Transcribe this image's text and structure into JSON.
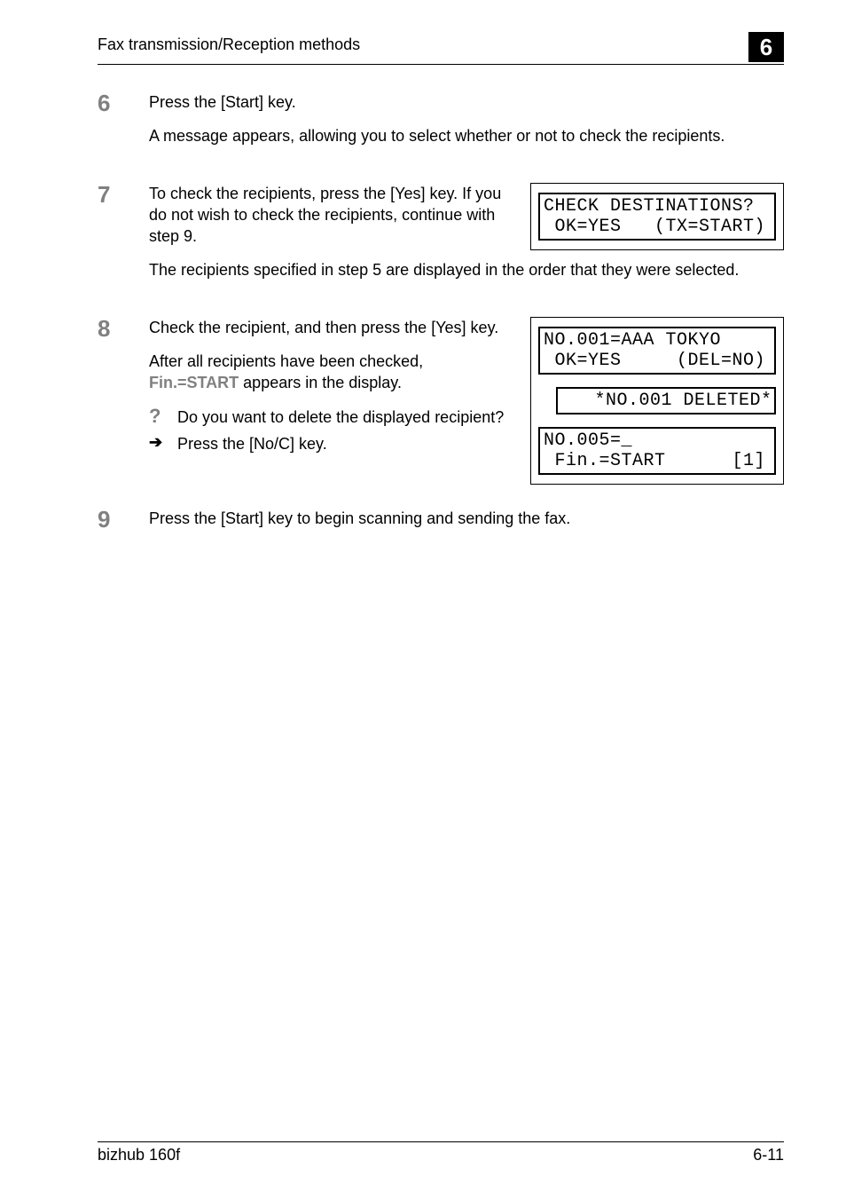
{
  "header": {
    "title": "Fax transmission/Reception methods",
    "chapter": "6"
  },
  "steps": {
    "s6": {
      "num": "6",
      "p1": "Press the [Start] key.",
      "p2": "A message appears, allowing you to select whether or not to check the recipients."
    },
    "s7": {
      "num": "7",
      "p1": "To check the recipients, press the [Yes] key. If you do not wish to check the recipients, continue with step 9.",
      "p2": "The recipients specified in step 5 are displayed in the order that they were selected.",
      "lcd": {
        "l1": "CHECK DESTINATIONS?",
        "l2": " OK=YES   (TX=START)"
      }
    },
    "s8": {
      "num": "8",
      "p1": "Check the recipient, and then press the [Yes] key.",
      "p2a": "After all recipients have been checked, ",
      "p2_emph": "Fin.=START",
      "p2b": " appears in the display.",
      "q": "Do you want to delete the displayed recipient?",
      "a": "Press the [No/C] key.",
      "lcd1": {
        "l1": "NO.001=AAA TOKYO",
        "l2": " OK=YES     (DEL=NO)"
      },
      "lcd2": {
        "l1": "   *NO.001 DELETED*",
        "l2": ""
      },
      "lcd3": {
        "l1": "NO.005=_",
        "l2": " Fin.=START      [1]"
      }
    },
    "s9": {
      "num": "9",
      "p1": "Press the [Start] key to begin scanning and sending the fax."
    }
  },
  "footer": {
    "left": "bizhub 160f",
    "right": "6-11"
  },
  "colors": {
    "grey": "#808080",
    "black": "#000000",
    "white": "#ffffff"
  }
}
